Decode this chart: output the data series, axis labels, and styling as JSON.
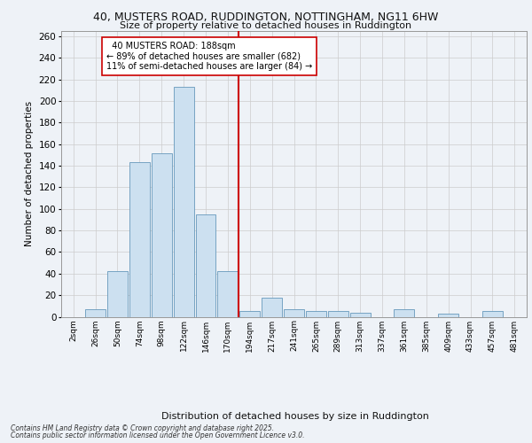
{
  "title_line1": "40, MUSTERS ROAD, RUDDINGTON, NOTTINGHAM, NG11 6HW",
  "title_line2": "Size of property relative to detached houses in Ruddington",
  "xlabel": "Distribution of detached houses by size in Ruddington",
  "ylabel": "Number of detached properties",
  "bar_labels": [
    "2sqm",
    "26sqm",
    "50sqm",
    "74sqm",
    "98sqm",
    "122sqm",
    "146sqm",
    "170sqm",
    "194sqm",
    "217sqm",
    "241sqm",
    "265sqm",
    "289sqm",
    "313sqm",
    "337sqm",
    "361sqm",
    "385sqm",
    "409sqm",
    "433sqm",
    "457sqm",
    "481sqm"
  ],
  "bar_values": [
    0,
    7,
    42,
    143,
    152,
    213,
    95,
    42,
    5,
    18,
    7,
    5,
    5,
    4,
    0,
    7,
    0,
    3,
    0,
    5,
    0
  ],
  "bar_color": "#cce0f0",
  "bar_edge_color": "#6699bb",
  "red_line_color": "#cc0000",
  "property_label": "40 MUSTERS ROAD: 188sqm",
  "pct_smaller": 89,
  "count_smaller": 682,
  "pct_larger": 11,
  "count_larger": 84,
  "annotation_box_color": "#ffffff",
  "annotation_box_edge": "#cc0000",
  "ylim": [
    0,
    265
  ],
  "yticks": [
    0,
    20,
    40,
    60,
    80,
    100,
    120,
    140,
    160,
    180,
    200,
    220,
    240,
    260
  ],
  "footer_line1": "Contains HM Land Registry data © Crown copyright and database right 2025.",
  "footer_line2": "Contains public sector information licensed under the Open Government Licence v3.0.",
  "bg_color": "#eef2f7",
  "plot_bg_color": "#eef2f7"
}
